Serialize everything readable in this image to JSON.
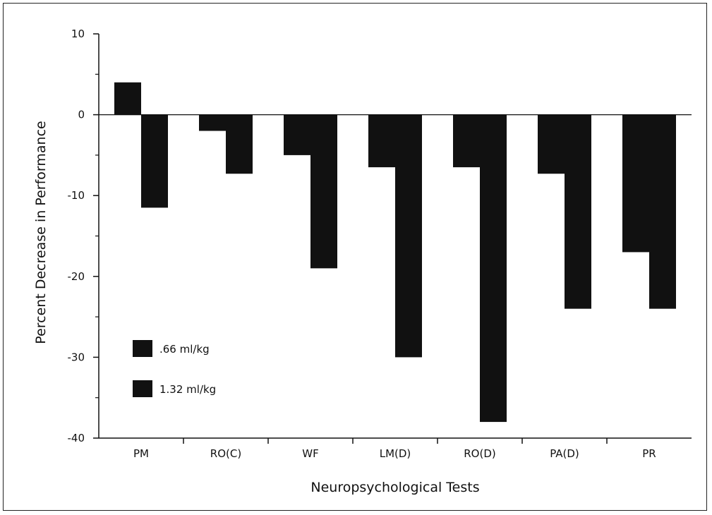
{
  "chart_data": {
    "type": "bar",
    "title": "",
    "xlabel": "Neuropsychological Tests",
    "ylabel": "Percent Decrease in Performance",
    "ylim": [
      -40,
      10
    ],
    "yticks": [
      10,
      0,
      -10,
      -20,
      -30,
      -40
    ],
    "ytick_labels": [
      "10",
      "0",
      "-10",
      "-20",
      "-30",
      "-40"
    ],
    "categories": [
      "PM",
      "RO(C)",
      "WF",
      "LM(D)",
      "RO(D)",
      "PA(D)",
      "PR"
    ],
    "series": [
      {
        "name": ".66 ml/kg",
        "values": [
          4.0,
          -2.0,
          -5.0,
          -6.5,
          -6.5,
          -7.3,
          -17.0
        ]
      },
      {
        "name": "1.32 ml/kg",
        "values": [
          -11.5,
          -7.3,
          -19.0,
          -30.0,
          -38.0,
          -24.0,
          -24.0
        ]
      }
    ],
    "legend_position": "lower-left inside plot",
    "grid": false,
    "colors": {
      "bar": "#111111",
      "axis": "#111111",
      "background": "#ffffff"
    }
  }
}
